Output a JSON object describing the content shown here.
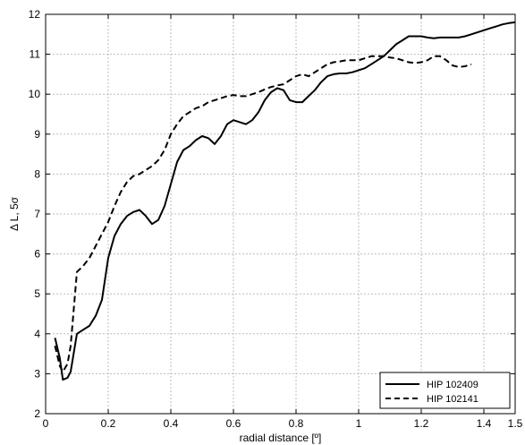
{
  "chart_data": {
    "type": "line",
    "title": "",
    "xlabel": "radial distance [º]",
    "ylabel": "Δ L, 5σ",
    "xlim": [
      0,
      1.5
    ],
    "ylim": [
      2,
      12
    ],
    "xticks": [
      0,
      0.2,
      0.4,
      0.6,
      0.8,
      1,
      1.2,
      1.4,
      1.5
    ],
    "xtick_labels": [
      "0",
      "0.2",
      "0.4",
      "0.6",
      "0.8",
      "1",
      "1.2",
      "1.4",
      "1.5"
    ],
    "yticks": [
      2,
      3,
      4,
      5,
      6,
      7,
      8,
      9,
      10,
      11,
      12
    ],
    "ytick_labels": [
      "2",
      "3",
      "4",
      "5",
      "6",
      "7",
      "8",
      "9",
      "10",
      "11",
      "12"
    ],
    "grid": true,
    "legend_position": "bottom-right",
    "series": [
      {
        "name": "HIP 102409",
        "style": "solid",
        "color": "#000000",
        "x": [
          0.03,
          0.045,
          0.055,
          0.07,
          0.08,
          0.1,
          0.12,
          0.14,
          0.16,
          0.18,
          0.2,
          0.22,
          0.24,
          0.26,
          0.28,
          0.3,
          0.32,
          0.34,
          0.36,
          0.38,
          0.4,
          0.42,
          0.44,
          0.46,
          0.48,
          0.5,
          0.52,
          0.54,
          0.56,
          0.58,
          0.6,
          0.62,
          0.64,
          0.66,
          0.68,
          0.7,
          0.72,
          0.74,
          0.76,
          0.78,
          0.8,
          0.82,
          0.84,
          0.86,
          0.88,
          0.9,
          0.92,
          0.94,
          0.96,
          0.98,
          1.0,
          1.02,
          1.04,
          1.06,
          1.08,
          1.1,
          1.12,
          1.14,
          1.16,
          1.18,
          1.2,
          1.22,
          1.24,
          1.26,
          1.28,
          1.3,
          1.32,
          1.34,
          1.36,
          1.38,
          1.4,
          1.42,
          1.44,
          1.46,
          1.48,
          1.5
        ],
        "y": [
          3.9,
          3.4,
          2.85,
          2.9,
          3.05,
          4.0,
          4.1,
          4.2,
          4.45,
          4.85,
          5.9,
          6.45,
          6.75,
          6.95,
          7.05,
          7.1,
          6.95,
          6.75,
          6.85,
          7.2,
          7.75,
          8.3,
          8.6,
          8.7,
          8.85,
          8.95,
          8.9,
          8.75,
          8.95,
          9.25,
          9.35,
          9.3,
          9.25,
          9.35,
          9.55,
          9.85,
          10.05,
          10.15,
          10.1,
          9.85,
          9.8,
          9.8,
          9.95,
          10.1,
          10.3,
          10.45,
          10.5,
          10.52,
          10.52,
          10.55,
          10.6,
          10.65,
          10.75,
          10.85,
          10.95,
          11.1,
          11.25,
          11.35,
          11.45,
          11.45,
          11.45,
          11.42,
          11.4,
          11.42,
          11.42,
          11.42,
          11.42,
          11.45,
          11.5,
          11.55,
          11.6,
          11.65,
          11.7,
          11.75,
          11.78,
          11.8
        ]
      },
      {
        "name": "HIP 102141",
        "style": "dashed",
        "color": "#000000",
        "x": [
          0.03,
          0.045,
          0.055,
          0.07,
          0.08,
          0.1,
          0.12,
          0.14,
          0.16,
          0.18,
          0.2,
          0.22,
          0.24,
          0.26,
          0.28,
          0.3,
          0.32,
          0.34,
          0.36,
          0.38,
          0.4,
          0.42,
          0.44,
          0.46,
          0.48,
          0.5,
          0.52,
          0.54,
          0.56,
          0.58,
          0.6,
          0.62,
          0.64,
          0.66,
          0.68,
          0.7,
          0.72,
          0.74,
          0.76,
          0.78,
          0.8,
          0.82,
          0.84,
          0.86,
          0.88,
          0.9,
          0.92,
          0.94,
          0.96,
          0.98,
          1.0,
          1.02,
          1.04,
          1.06,
          1.08,
          1.1,
          1.12,
          1.14,
          1.16,
          1.18,
          1.2,
          1.22,
          1.24,
          1.26,
          1.28,
          1.3,
          1.32,
          1.34,
          1.36
        ],
        "y": [
          3.7,
          3.2,
          3.05,
          3.25,
          3.7,
          5.55,
          5.7,
          5.9,
          6.2,
          6.5,
          6.8,
          7.2,
          7.55,
          7.8,
          7.95,
          8.0,
          8.1,
          8.2,
          8.35,
          8.6,
          9.0,
          9.25,
          9.45,
          9.55,
          9.65,
          9.7,
          9.8,
          9.85,
          9.9,
          9.95,
          9.98,
          9.95,
          9.95,
          10.0,
          10.05,
          10.12,
          10.18,
          10.22,
          10.25,
          10.35,
          10.45,
          10.5,
          10.45,
          10.55,
          10.65,
          10.75,
          10.8,
          10.82,
          10.85,
          10.85,
          10.85,
          10.9,
          10.95,
          10.95,
          10.95,
          10.92,
          10.9,
          10.85,
          10.8,
          10.78,
          10.8,
          10.85,
          10.95,
          10.95,
          10.85,
          10.72,
          10.68,
          10.7,
          10.75
        ]
      }
    ]
  }
}
